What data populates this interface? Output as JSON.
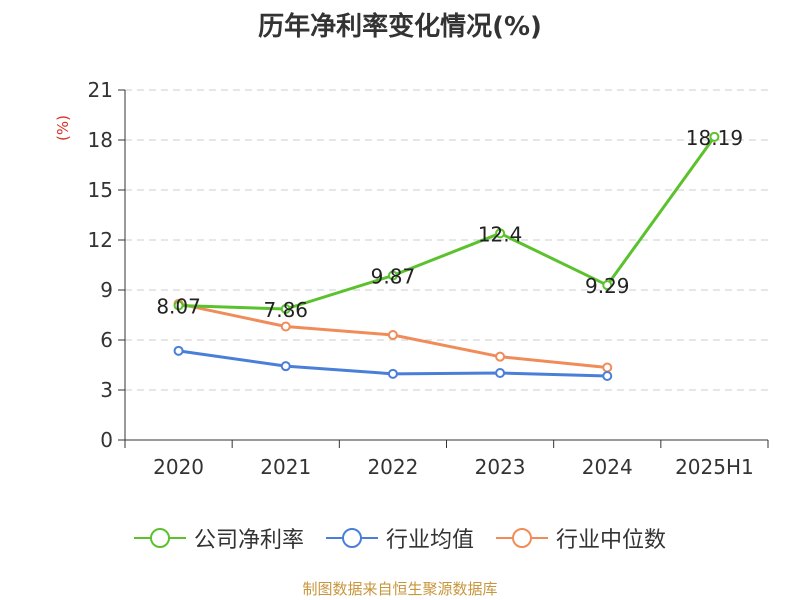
{
  "title": "历年净利率变化情况(%)",
  "source": "制图数据来自恒生聚源数据库",
  "chart_data": {
    "type": "line",
    "title": "历年净利率变化情况(%)",
    "ylabel": "(%)",
    "xlabel": "",
    "categories": [
      "2020",
      "2021",
      "2022",
      "2023",
      "2024",
      "2025H1"
    ],
    "ylim": [
      0,
      21
    ],
    "yticks": [
      0,
      3,
      6,
      9,
      12,
      15,
      18,
      21
    ],
    "grid": true,
    "legend_position": "bottom",
    "series": [
      {
        "name": "公司净利率",
        "color": "#5bc22e",
        "labels": true,
        "values": [
          8.07,
          7.86,
          9.87,
          12.4,
          9.29,
          18.19
        ]
      },
      {
        "name": "行业均值",
        "color": "#4a7fd9",
        "labels": false,
        "values": [
          5.35,
          4.43,
          3.97,
          4.02,
          3.84,
          null
        ]
      },
      {
        "name": "行业中位数",
        "color": "#f08c5a",
        "labels": false,
        "values": [
          8.17,
          6.81,
          6.3,
          5.0,
          4.35,
          null
        ]
      }
    ]
  }
}
